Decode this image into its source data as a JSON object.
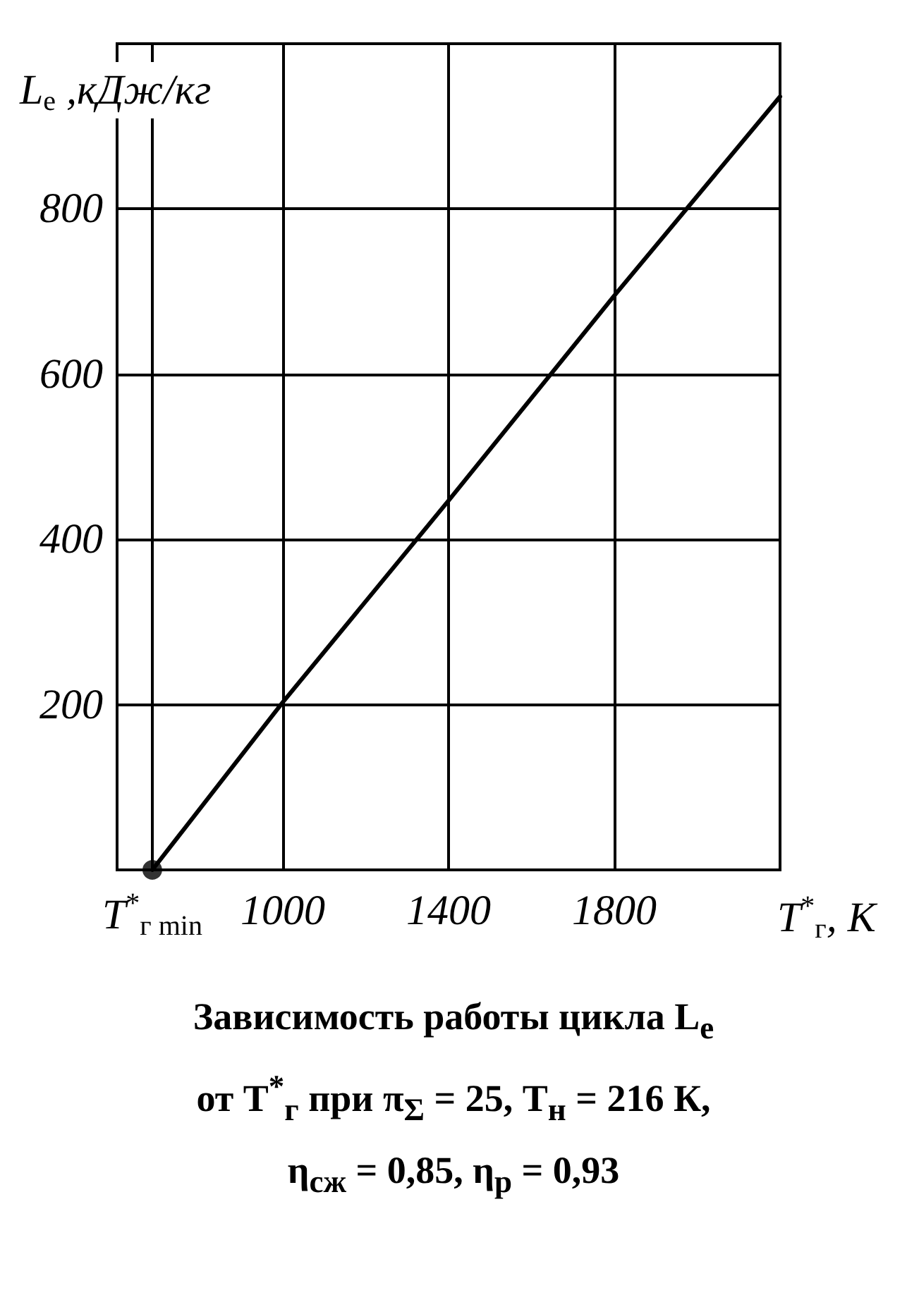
{
  "chart_data": {
    "type": "line",
    "title": "Зависимость работы цикла L$_{e}$ от T$^{*}$$_{г}$ при π$_{Σ}$ = 25, T$_{н}$ = 216 К, η$_{сж}$ = 0,85, η$_{р}$ = 0,93",
    "xlabel": "T$^{*}$$_{г}$, К",
    "ylabel": "L$_{e}$ ,кДж/кг",
    "xlim": [
      600,
      2200
    ],
    "xticks": [
      {
        "value": 685,
        "label": "T$^{*}$$_{г min}$"
      },
      1000,
      1400,
      1800
    ],
    "ylim": [
      0,
      1000
    ],
    "yticks": [
      200,
      400,
      600,
      800
    ],
    "grid": true,
    "series": [
      {
        "color": "#000000",
        "marker": "none",
        "x": [
          685,
          1000,
          1400,
          1800,
          2200
        ],
        "values": [
          0,
          203,
          447,
          695,
          936
        ]
      },
      {
        "type": "scatter",
        "color": "#000000",
        "marker": "circle",
        "x": [
          685
        ],
        "values": [
          0
        ]
      }
    ]
  }
}
